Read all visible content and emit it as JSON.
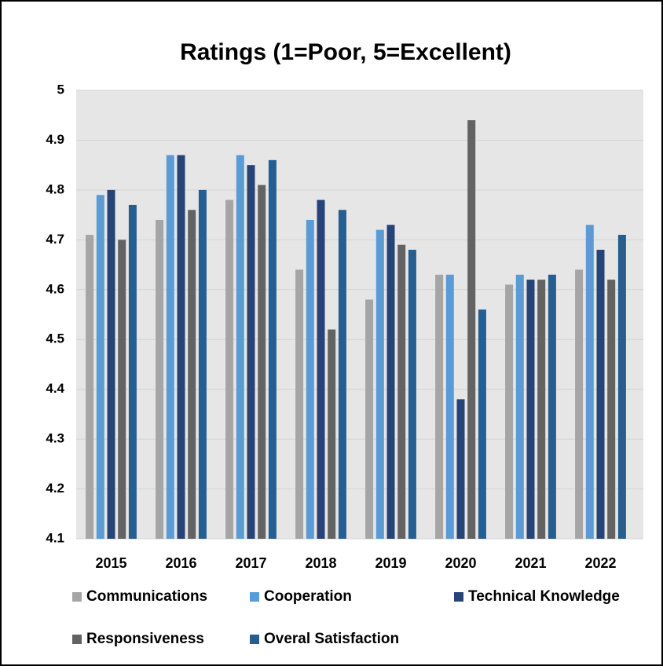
{
  "chart_data": {
    "type": "bar",
    "title": "Ratings (1=Poor, 5=Excellent)",
    "categories": [
      "2015",
      "2016",
      "2017",
      "2018",
      "2019",
      "2020",
      "2021",
      "2022"
    ],
    "series": [
      {
        "name": "Communications",
        "color": "#a5a5a5",
        "values": [
          4.71,
          4.74,
          4.78,
          4.64,
          4.58,
          4.63,
          4.61,
          4.64
        ]
      },
      {
        "name": "Cooperation",
        "color": "#5b9bd5",
        "values": [
          4.79,
          4.87,
          4.87,
          4.74,
          4.72,
          4.63,
          4.63,
          4.73
        ]
      },
      {
        "name": "Technical Knowledge",
        "color": "#264478",
        "values": [
          4.8,
          4.87,
          4.85,
          4.78,
          4.73,
          4.38,
          4.62,
          4.68
        ]
      },
      {
        "name": "Responsiveness",
        "color": "#636363",
        "values": [
          4.7,
          4.76,
          4.81,
          4.52,
          4.69,
          4.94,
          4.62,
          4.62
        ]
      },
      {
        "name": "Overal Satisfaction",
        "color": "#255e91",
        "values": [
          4.77,
          4.8,
          4.86,
          4.76,
          4.68,
          4.56,
          4.63,
          4.71
        ]
      }
    ],
    "ylim": [
      4.1,
      5
    ],
    "yticks": [
      4.1,
      4.2,
      4.3,
      4.4,
      4.5,
      4.6,
      4.7,
      4.8,
      4.9,
      5
    ],
    "grid": true,
    "legend": "bottom"
  }
}
